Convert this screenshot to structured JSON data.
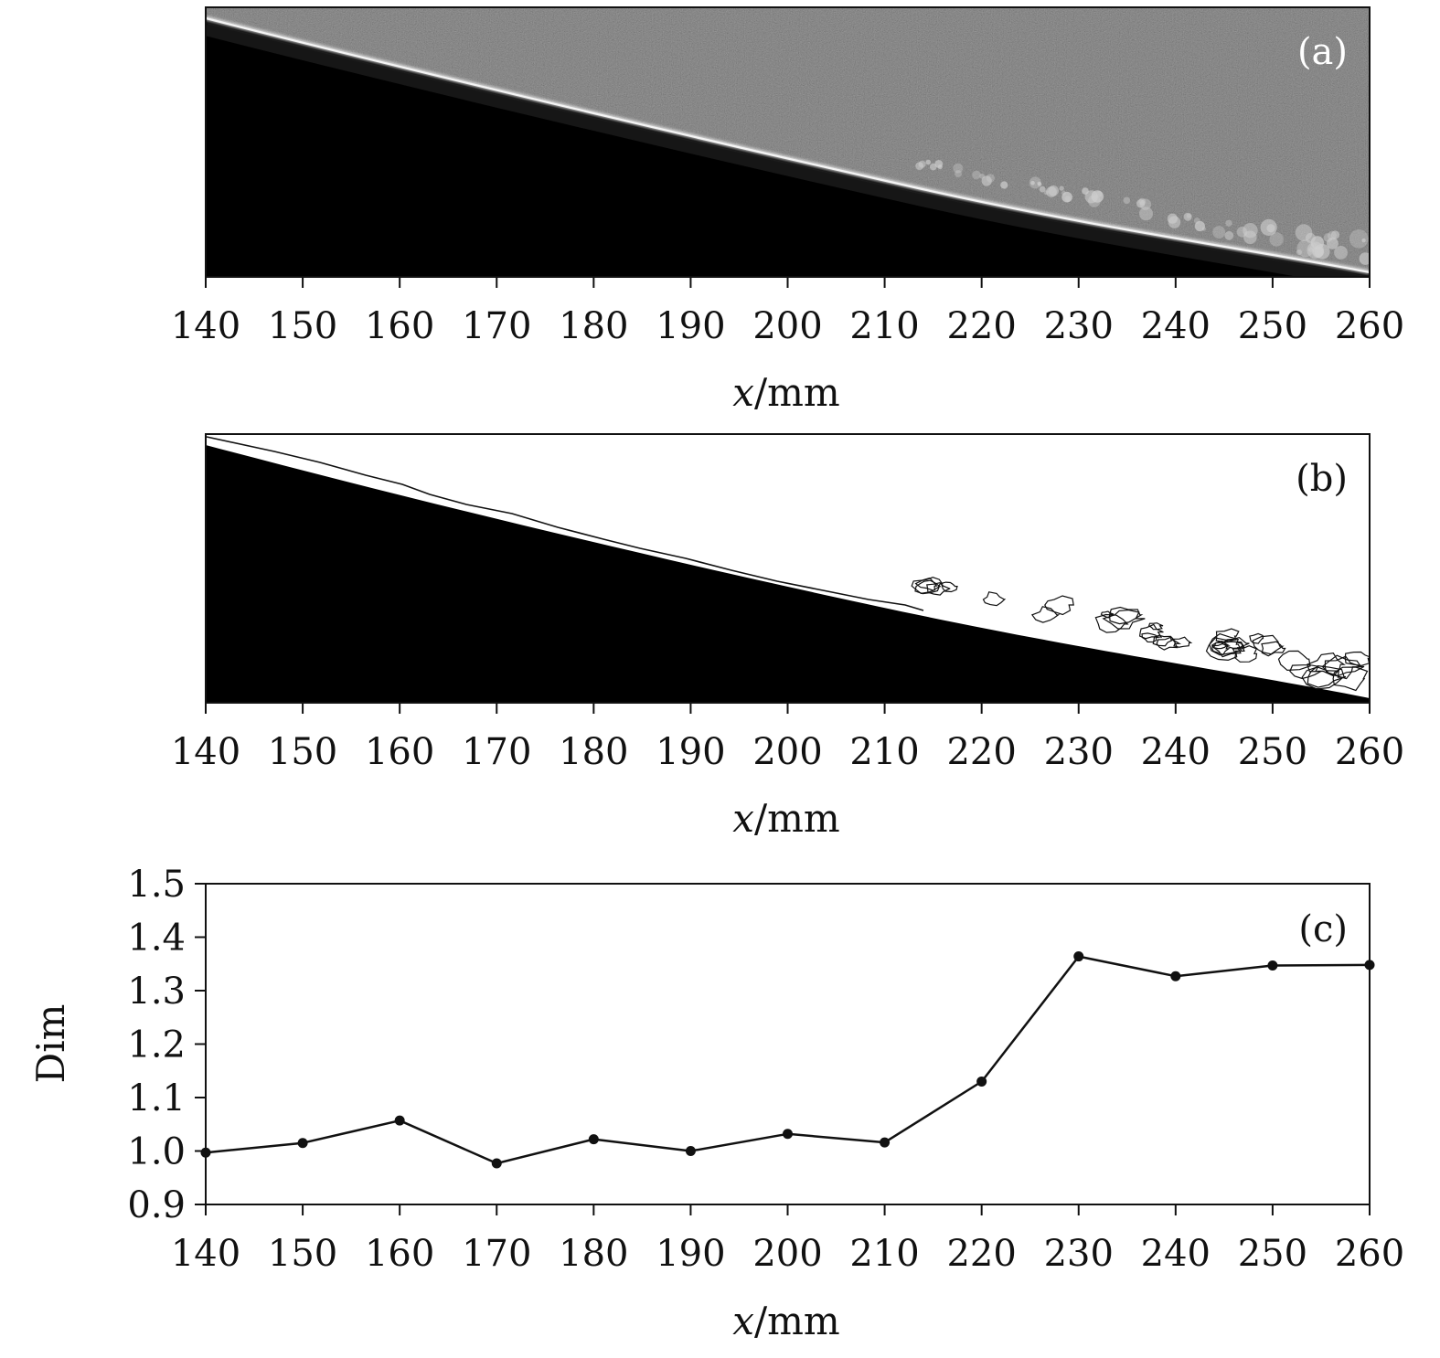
{
  "colors": {
    "foreground": "#111111",
    "background": "#ffffff",
    "image_a_bg": "#4a4a4a",
    "image_dark": "#000000",
    "panel_a_label": "#ffffff",
    "panel_bc_label": "#111111"
  },
  "chart_data": [
    {
      "type": "image",
      "panel_label": "(a)",
      "xlabel_italic": "x",
      "xlabel_unit": "/mm",
      "xlim": [
        140,
        260
      ],
      "xticks": [
        140,
        150,
        160,
        170,
        180,
        190,
        200,
        210,
        220,
        230,
        240,
        250,
        260
      ],
      "xtick_labels": [
        "140",
        "150",
        "160",
        "170",
        "180",
        "190",
        "200",
        "210",
        "220",
        "230",
        "240",
        "250",
        "260"
      ]
    },
    {
      "type": "image",
      "panel_label": "(b)",
      "xlabel_italic": "x",
      "xlabel_unit": "/mm",
      "xlim": [
        140,
        260
      ],
      "xticks": [
        140,
        150,
        160,
        170,
        180,
        190,
        200,
        210,
        220,
        230,
        240,
        250,
        260
      ],
      "xtick_labels": [
        "140",
        "150",
        "160",
        "170",
        "180",
        "190",
        "200",
        "210",
        "220",
        "230",
        "240",
        "250",
        "260"
      ]
    },
    {
      "type": "line",
      "panel_label": "(c)",
      "xlabel_italic": "x",
      "xlabel_unit": "/mm",
      "ylabel": "Dim",
      "xlim": [
        140,
        260
      ],
      "ylim": [
        0.9,
        1.5
      ],
      "grid": false,
      "xticks": [
        140,
        150,
        160,
        170,
        180,
        190,
        200,
        210,
        220,
        230,
        240,
        250,
        260
      ],
      "xtick_labels": [
        "140",
        "150",
        "160",
        "170",
        "180",
        "190",
        "200",
        "210",
        "220",
        "230",
        "240",
        "250",
        "260"
      ],
      "yticks": [
        0.9,
        1.0,
        1.1,
        1.2,
        1.3,
        1.4,
        1.5
      ],
      "ytick_labels": [
        "0.9",
        "1.0",
        "1.1",
        "1.2",
        "1.3",
        "1.4",
        "1.5"
      ],
      "x": [
        140,
        150,
        160,
        170,
        180,
        190,
        200,
        210,
        220,
        230,
        240,
        250,
        260
      ],
      "y": [
        0.997,
        1.015,
        1.057,
        0.977,
        1.022,
        1.0,
        1.032,
        1.016,
        1.13,
        1.364,
        1.327,
        1.347,
        1.348
      ]
    }
  ]
}
